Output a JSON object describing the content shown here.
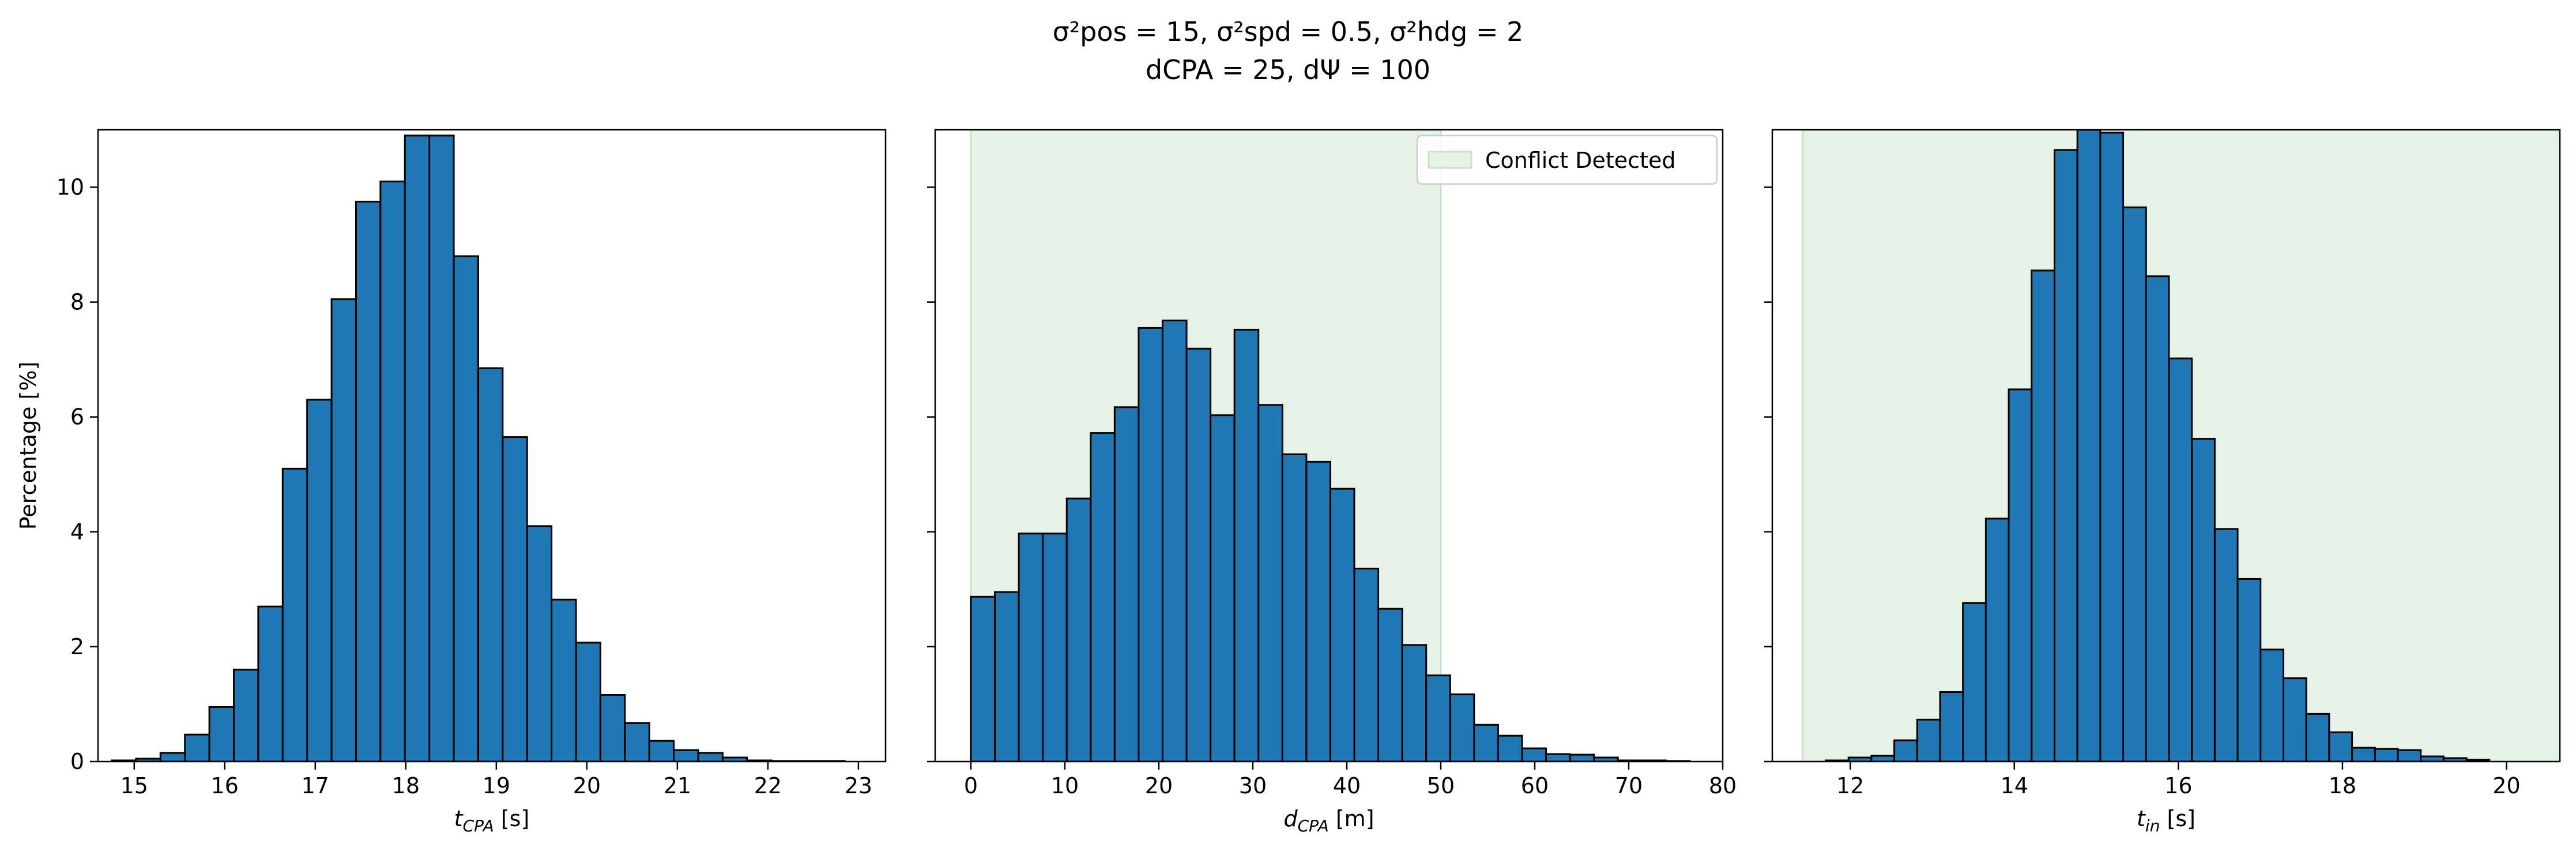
{
  "title": {
    "line1": "σ²pos = 15, σ²spd = 0.5, σ²hdg = 2",
    "line2": "dCPA = 25, dΨ = 100"
  },
  "chart_data": [
    {
      "type": "bar",
      "xlabel": "tCPA [s]",
      "ylabel": "Percentage [%]",
      "xlim": [
        14.6,
        23.3
      ],
      "ylim": [
        0,
        11
      ],
      "xticks": [
        15,
        16,
        17,
        18,
        19,
        20,
        21,
        22,
        23
      ],
      "yticks": [
        0,
        2,
        4,
        6,
        8,
        10
      ],
      "bin_start": 14.75,
      "bin_width": 0.27,
      "values": [
        0.02,
        0.05,
        0.15,
        0.47,
        0.95,
        1.6,
        2.7,
        5.1,
        6.3,
        8.05,
        9.75,
        10.1,
        10.9,
        10.9,
        8.8,
        6.85,
        5.65,
        4.1,
        2.82,
        2.07,
        1.16,
        0.67,
        0.36,
        0.2,
        0.15,
        0.07,
        0.02,
        0.01,
        0.01,
        0.01
      ]
    },
    {
      "type": "bar",
      "xlabel": "dCPA [m]",
      "ylabel": "",
      "xlim": [
        -3.8,
        80
      ],
      "ylim": [
        0,
        11
      ],
      "xticks": [
        0,
        10,
        20,
        30,
        40,
        50,
        60,
        70,
        80
      ],
      "yticks": [
        0,
        2,
        4,
        6,
        8,
        10
      ],
      "bin_start": 0,
      "bin_width": 2.55,
      "values": [
        2.87,
        2.95,
        3.97,
        3.97,
        4.58,
        5.72,
        6.17,
        7.55,
        7.68,
        7.19,
        6.03,
        7.52,
        6.21,
        5.35,
        5.22,
        4.75,
        3.36,
        2.66,
        2.03,
        1.5,
        1.17,
        0.64,
        0.45,
        0.23,
        0.13,
        0.12,
        0.07,
        0.02,
        0.02,
        0.01
      ],
      "shaded_region": [
        0,
        50
      ],
      "legend": [
        "Conflict Detected"
      ],
      "legend_placement": "top-right"
    },
    {
      "type": "bar",
      "xlabel": "tin [s]",
      "ylabel": "",
      "xlim": [
        11.05,
        20.65
      ],
      "ylim": [
        0,
        11
      ],
      "xticks": [
        12,
        14,
        16,
        18,
        20
      ],
      "yticks": [
        0,
        2,
        4,
        6,
        8,
        10
      ],
      "bin_start": 11.7,
      "bin_width": 0.279,
      "values": [
        0.02,
        0.07,
        0.1,
        0.37,
        0.73,
        1.21,
        2.76,
        4.23,
        6.48,
        8.55,
        10.65,
        11.0,
        10.95,
        9.65,
        8.45,
        7.02,
        5.62,
        4.05,
        3.18,
        1.95,
        1.45,
        0.83,
        0.51,
        0.24,
        0.22,
        0.2,
        0.09,
        0.06,
        0.03
      ],
      "shaded_region": [
        11.42,
        20.65
      ]
    }
  ],
  "colors": {
    "bar_fill": "#1f77b4",
    "bar_edge": "#000000",
    "shade": "#e6f2e6",
    "shade_edge": "#c8e2c8"
  }
}
